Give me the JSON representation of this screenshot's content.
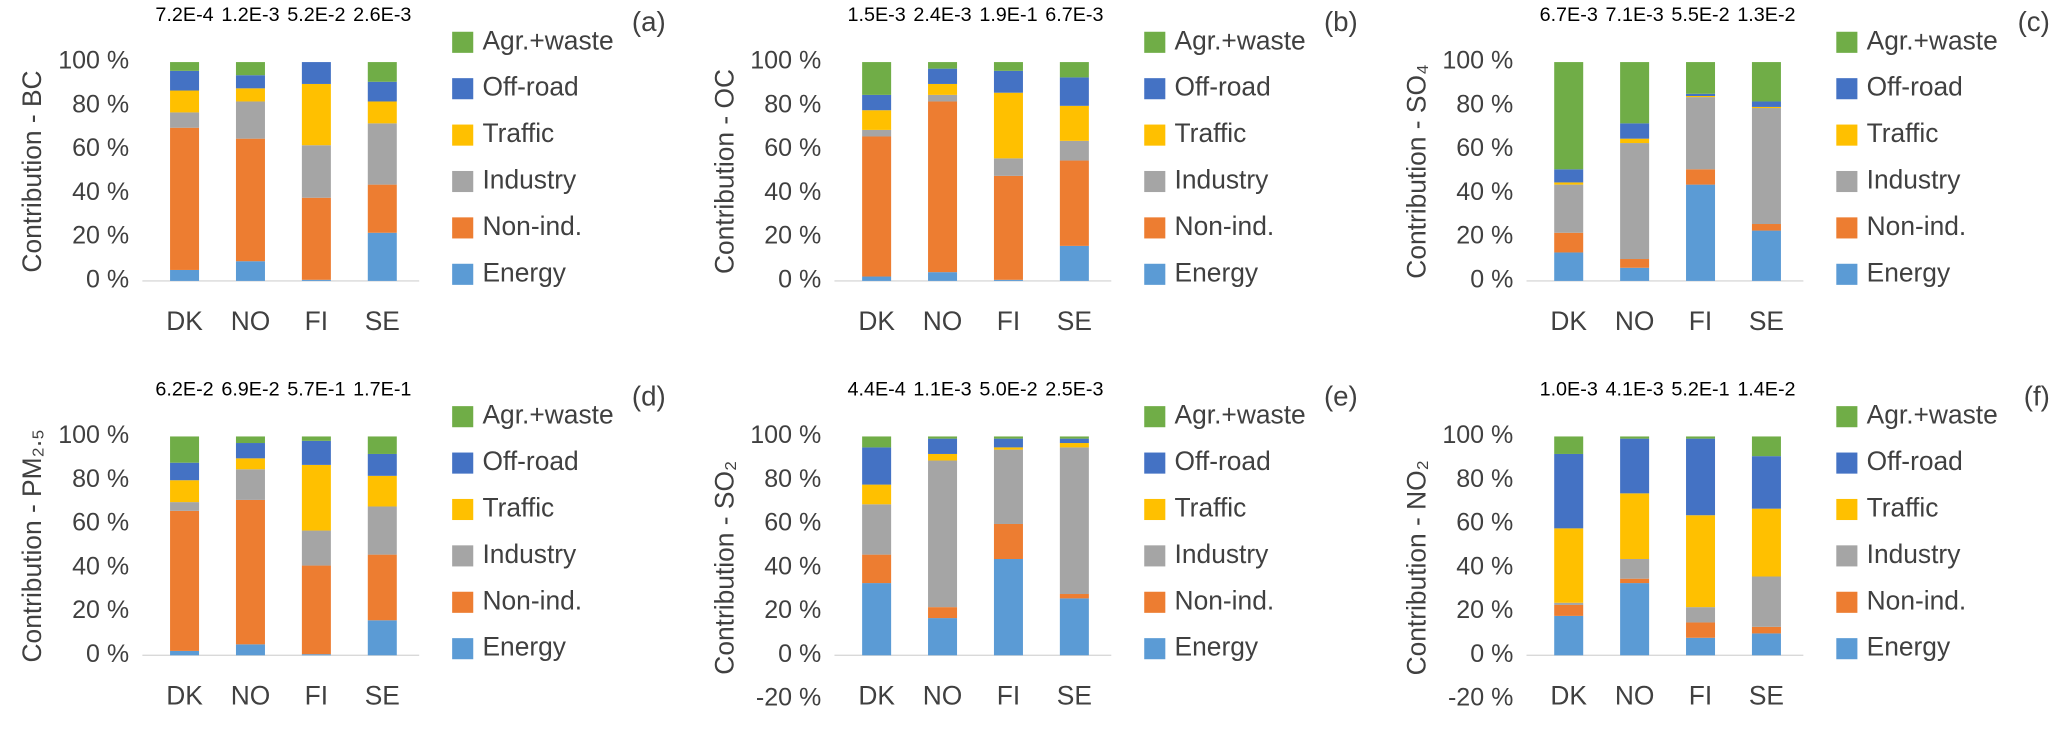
{
  "chart_data": [
    {
      "type": "bar",
      "stacked": true,
      "panel_label": "(a)",
      "y_label": "Contribution - BC",
      "categories": [
        "DK",
        "NO",
        "FI",
        "SE"
      ],
      "top_labels": [
        "7.2E-4",
        "1.2E-3",
        "5.2E-2",
        "2.6E-3"
      ],
      "ylim": [
        0,
        100
      ],
      "yticks": [
        {
          "value": 0,
          "label": "0 %"
        },
        {
          "value": 20,
          "label": "20 %"
        },
        {
          "value": 40,
          "label": "40 %"
        },
        {
          "value": 60,
          "label": "60 %"
        },
        {
          "value": 80,
          "label": "80 %"
        },
        {
          "value": 100,
          "label": "100 %"
        }
      ],
      "series": [
        {
          "name": "Energy",
          "color": "#5b9bd5",
          "values": [
            5,
            9,
            0.5,
            22
          ]
        },
        {
          "name": "Non-ind.",
          "color": "#ed7d31",
          "values": [
            65,
            56,
            37.5,
            22
          ]
        },
        {
          "name": "Industry",
          "color": "#a5a5a5",
          "values": [
            7,
            17,
            24,
            28
          ]
        },
        {
          "name": "Traffic",
          "color": "#ffc000",
          "values": [
            10,
            6,
            28,
            10
          ]
        },
        {
          "name": "Off-road",
          "color": "#4472c4",
          "values": [
            9,
            6,
            10,
            9
          ]
        },
        {
          "name": "Agr.+waste",
          "color": "#70ad47",
          "values": [
            4,
            6,
            0,
            9
          ]
        }
      ]
    },
    {
      "type": "bar",
      "stacked": true,
      "panel_label": "(b)",
      "y_label": "Contribution - OC",
      "categories": [
        "DK",
        "NO",
        "FI",
        "SE"
      ],
      "top_labels": [
        "1.5E-3",
        "2.4E-3",
        "1.9E-1",
        "6.7E-3"
      ],
      "ylim": [
        0,
        100
      ],
      "yticks": [
        {
          "value": 0,
          "label": "0 %"
        },
        {
          "value": 20,
          "label": "20 %"
        },
        {
          "value": 40,
          "label": "40 %"
        },
        {
          "value": 60,
          "label": "60 %"
        },
        {
          "value": 80,
          "label": "80 %"
        },
        {
          "value": 100,
          "label": "100 %"
        }
      ],
      "series": [
        {
          "name": "Energy",
          "color": "#5b9bd5",
          "values": [
            2,
            4,
            0.5,
            16
          ]
        },
        {
          "name": "Non-ind.",
          "color": "#ed7d31",
          "values": [
            64,
            78,
            47.5,
            39
          ]
        },
        {
          "name": "Industry",
          "color": "#a5a5a5",
          "values": [
            3,
            3,
            8,
            9
          ]
        },
        {
          "name": "Traffic",
          "color": "#ffc000",
          "values": [
            9,
            5,
            30,
            16
          ]
        },
        {
          "name": "Off-road",
          "color": "#4472c4",
          "values": [
            7,
            7,
            10,
            13
          ]
        },
        {
          "name": "Agr.+waste",
          "color": "#70ad47",
          "values": [
            15,
            3,
            4,
            7
          ]
        }
      ]
    },
    {
      "type": "bar",
      "stacked": true,
      "panel_label": "(c)",
      "y_label": "Contribution - SO₄",
      "categories": [
        "DK",
        "NO",
        "FI",
        "SE"
      ],
      "top_labels": [
        "6.7E-3",
        "7.1E-3",
        "5.5E-2",
        "1.3E-2"
      ],
      "ylim": [
        0,
        100
      ],
      "yticks": [
        {
          "value": 0,
          "label": "0 %"
        },
        {
          "value": 20,
          "label": "20 %"
        },
        {
          "value": 40,
          "label": "40 %"
        },
        {
          "value": 60,
          "label": "60 %"
        },
        {
          "value": 80,
          "label": "80 %"
        },
        {
          "value": 100,
          "label": "100 %"
        }
      ],
      "series": [
        {
          "name": "Energy",
          "color": "#5b9bd5",
          "values": [
            13,
            6,
            44,
            23
          ]
        },
        {
          "name": "Non-ind.",
          "color": "#ed7d31",
          "values": [
            9,
            4,
            7,
            3
          ]
        },
        {
          "name": "Industry",
          "color": "#a5a5a5",
          "values": [
            22,
            53,
            33,
            53
          ]
        },
        {
          "name": "Traffic",
          "color": "#ffc000",
          "values": [
            1,
            2,
            0.5,
            0.5
          ]
        },
        {
          "name": "Off-road",
          "color": "#4472c4",
          "values": [
            6,
            7,
            1,
            2.5
          ]
        },
        {
          "name": "Agr.+waste",
          "color": "#70ad47",
          "values": [
            49,
            28,
            14.5,
            18
          ]
        }
      ]
    },
    {
      "type": "bar",
      "stacked": true,
      "panel_label": "(d)",
      "y_label": "Contribution - PM₂.₅",
      "categories": [
        "DK",
        "NO",
        "FI",
        "SE"
      ],
      "top_labels": [
        "6.2E-2",
        "6.9E-2",
        "5.7E-1",
        "1.7E-1"
      ],
      "ylim": [
        0,
        100
      ],
      "yticks": [
        {
          "value": 0,
          "label": "0 %"
        },
        {
          "value": 20,
          "label": "20 %"
        },
        {
          "value": 40,
          "label": "40 %"
        },
        {
          "value": 60,
          "label": "60 %"
        },
        {
          "value": 80,
          "label": "80 %"
        },
        {
          "value": 100,
          "label": "100 %"
        }
      ],
      "series": [
        {
          "name": "Energy",
          "color": "#5b9bd5",
          "values": [
            2,
            5,
            0.5,
            16
          ]
        },
        {
          "name": "Non-ind.",
          "color": "#ed7d31",
          "values": [
            64,
            66,
            40.5,
            30
          ]
        },
        {
          "name": "Industry",
          "color": "#a5a5a5",
          "values": [
            4,
            14,
            16,
            22
          ]
        },
        {
          "name": "Traffic",
          "color": "#ffc000",
          "values": [
            10,
            5,
            30,
            14
          ]
        },
        {
          "name": "Off-road",
          "color": "#4472c4",
          "values": [
            8,
            7,
            11,
            10
          ]
        },
        {
          "name": "Agr.+waste",
          "color": "#70ad47",
          "values": [
            12,
            3,
            2,
            8
          ]
        }
      ]
    },
    {
      "type": "bar",
      "stacked": true,
      "panel_label": "(e)",
      "y_label": "Contribution - SO₂",
      "categories": [
        "DK",
        "NO",
        "FI",
        "SE"
      ],
      "top_labels": [
        "4.4E-4",
        "1.1E-3",
        "5.0E-2",
        "2.5E-3"
      ],
      "ylim": [
        -20,
        100
      ],
      "yticks": [
        {
          "value": -20,
          "label": "-20 %"
        },
        {
          "value": 0,
          "label": "0 %"
        },
        {
          "value": 20,
          "label": "20 %"
        },
        {
          "value": 40,
          "label": "40 %"
        },
        {
          "value": 60,
          "label": "60 %"
        },
        {
          "value": 80,
          "label": "80 %"
        },
        {
          "value": 100,
          "label": "100 %"
        }
      ],
      "series": [
        {
          "name": "Energy",
          "color": "#5b9bd5",
          "values": [
            33,
            17,
            44,
            26
          ]
        },
        {
          "name": "Non-ind.",
          "color": "#ed7d31",
          "values": [
            13,
            5,
            16,
            2
          ]
        },
        {
          "name": "Industry",
          "color": "#a5a5a5",
          "values": [
            23,
            67,
            34,
            67
          ]
        },
        {
          "name": "Traffic",
          "color": "#ffc000",
          "values": [
            9,
            3,
            1,
            2
          ]
        },
        {
          "name": "Off-road",
          "color": "#4472c4",
          "values": [
            17,
            7,
            4,
            2
          ]
        },
        {
          "name": "Agr.+waste",
          "color": "#70ad47",
          "values": [
            5,
            1,
            1,
            1
          ]
        }
      ]
    },
    {
      "type": "bar",
      "stacked": true,
      "panel_label": "(f)",
      "y_label": "Contribution - NO₂",
      "categories": [
        "DK",
        "NO",
        "FI",
        "SE"
      ],
      "top_labels": [
        "1.0E-3",
        "4.1E-3",
        "5.2E-1",
        "1.4E-2"
      ],
      "ylim": [
        -20,
        100
      ],
      "yticks": [
        {
          "value": -20,
          "label": "-20 %"
        },
        {
          "value": 0,
          "label": "0 %"
        },
        {
          "value": 20,
          "label": "20 %"
        },
        {
          "value": 40,
          "label": "40 %"
        },
        {
          "value": 60,
          "label": "60 %"
        },
        {
          "value": 80,
          "label": "80 %"
        },
        {
          "value": 100,
          "label": "100 %"
        }
      ],
      "series": [
        {
          "name": "Energy",
          "color": "#5b9bd5",
          "values": [
            18,
            33,
            8,
            10
          ]
        },
        {
          "name": "Non-ind.",
          "color": "#ed7d31",
          "values": [
            5,
            2,
            7,
            3
          ]
        },
        {
          "name": "Industry",
          "color": "#a5a5a5",
          "values": [
            1,
            9,
            7,
            23
          ]
        },
        {
          "name": "Traffic",
          "color": "#ffc000",
          "values": [
            34,
            30,
            42,
            31
          ]
        },
        {
          "name": "Off-road",
          "color": "#4472c4",
          "values": [
            34,
            25,
            35,
            24
          ]
        },
        {
          "name": "Agr.+waste",
          "color": "#70ad47",
          "values": [
            8,
            1,
            1,
            9
          ]
        }
      ]
    }
  ]
}
